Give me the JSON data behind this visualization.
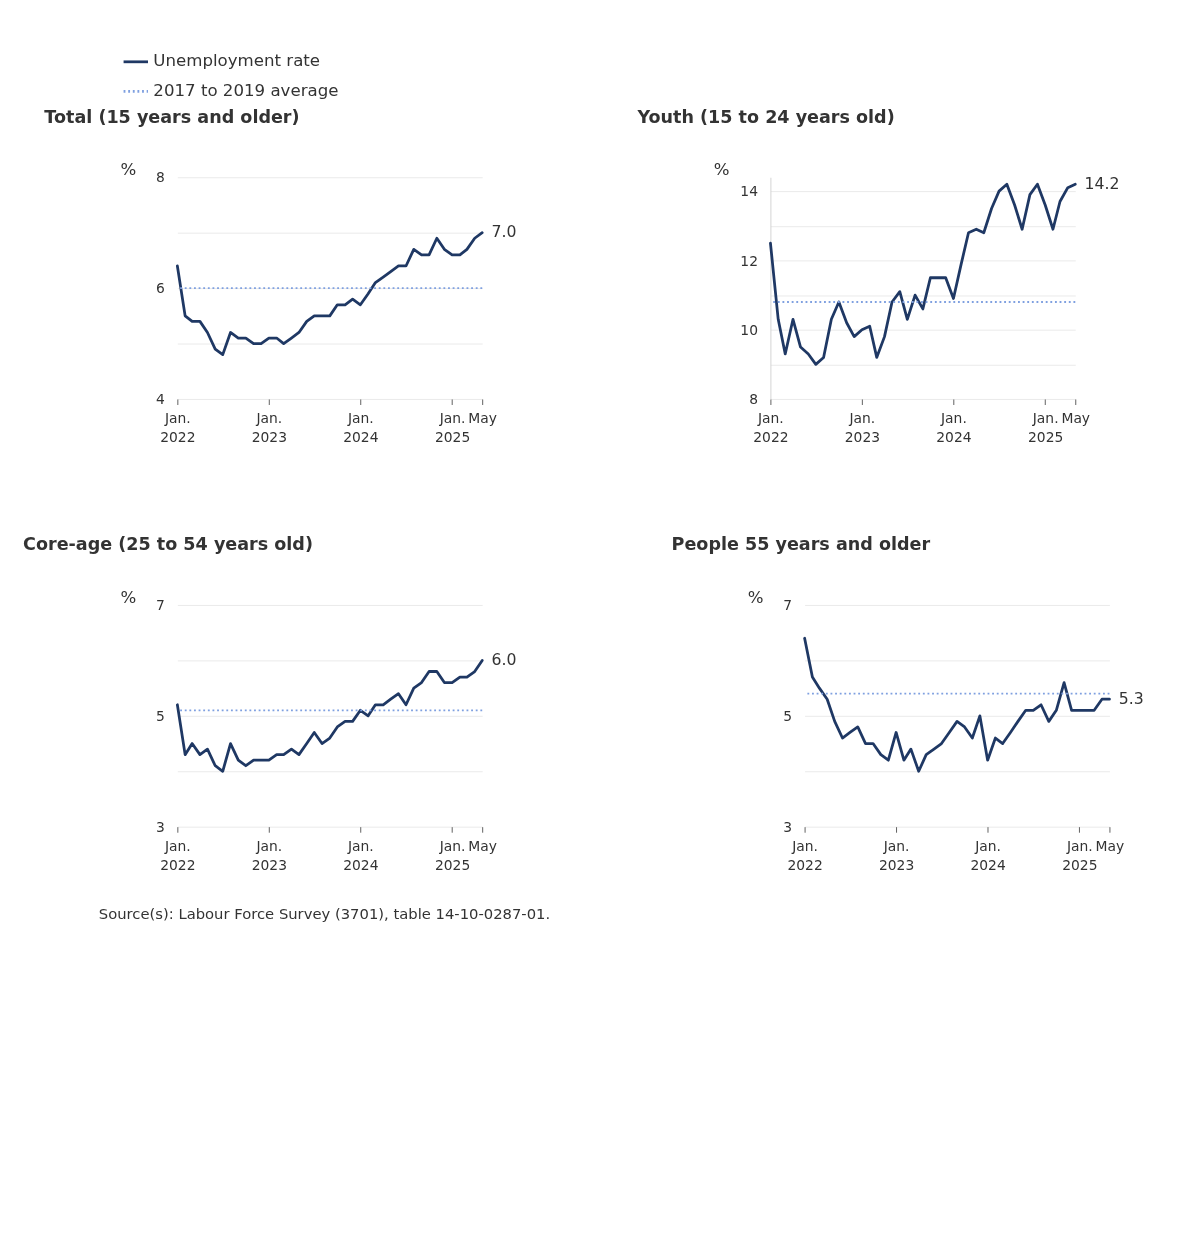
{
  "chart_data": [
    {
      "type": "line",
      "title": "Total (15 years and older)",
      "ylabel": "%",
      "legend": "top",
      "grid": "y",
      "x": [
        "2022-01",
        "2022-02",
        "2022-03",
        "2022-04",
        "2022-05",
        "2022-06",
        "2022-07",
        "2022-08",
        "2022-09",
        "2022-10",
        "2022-11",
        "2022-12",
        "2023-01",
        "2023-02",
        "2023-03",
        "2023-04",
        "2023-05",
        "2023-06",
        "2023-07",
        "2023-08",
        "2023-09",
        "2023-10",
        "2023-11",
        "2023-12",
        "2024-01",
        "2024-02",
        "2024-03",
        "2024-04",
        "2024-05",
        "2024-06",
        "2024-07",
        "2024-08",
        "2024-09",
        "2024-10",
        "2024-11",
        "2024-12",
        "2025-01",
        "2025-02",
        "2025-03",
        "2025-04",
        "2025-05"
      ],
      "series": [
        {
          "name": "Unemployment rate",
          "color": "#1f3864",
          "values": [
            6.4,
            5.5,
            5.4,
            5.4,
            5.2,
            4.9,
            4.8,
            5.2,
            5.1,
            5.1,
            5.0,
            5.0,
            5.1,
            5.1,
            5.0,
            5.1,
            5.2,
            5.4,
            5.5,
            5.5,
            5.5,
            5.7,
            5.7,
            5.8,
            5.7,
            5.9,
            6.1,
            6.2,
            6.3,
            6.4,
            6.4,
            6.7,
            6.6,
            6.6,
            6.9,
            6.7,
            6.6,
            6.6,
            6.7,
            6.9,
            7.0
          ],
          "value_labels": [
            null,
            null,
            null,
            null,
            null,
            null,
            null,
            null,
            null,
            null,
            null,
            null,
            null,
            null,
            null,
            null,
            null,
            null,
            null,
            null,
            null,
            null,
            null,
            null,
            null,
            null,
            null,
            null,
            null,
            null,
            null,
            null,
            null,
            null,
            null,
            null,
            null,
            null,
            null,
            null,
            "7.0"
          ]
        }
      ],
      "ref_lines": [
        {
          "axis": "y",
          "value": 6.0,
          "label": "2017 to 2019 average",
          "color": "#7fa0e0",
          "line_style": "dotted"
        }
      ],
      "ylim": [
        4,
        8
      ],
      "yticks": [
        4,
        {
          "value": 5,
          "label": null
        },
        6,
        {
          "value": 7,
          "label": null
        },
        8
      ],
      "xlim": [
        "2022-01",
        "2025-05"
      ],
      "xticks": [
        {
          "value": "2022-01",
          "label": "Jan. 2022"
        },
        {
          "value": "2023-01",
          "label": "Jan. 2023"
        },
        {
          "value": "2024-01",
          "label": "Jan. 2024"
        },
        {
          "value": "2025-01",
          "label": "Jan. 2025"
        },
        {
          "value": "2025-05",
          "label": "May"
        }
      ]
    },
    {
      "type": "line",
      "title": "Youth (15 to 24 years old)",
      "ylabel": "%",
      "grid": "y",
      "x": [
        "2022-01",
        "2022-02",
        "2022-03",
        "2022-04",
        "2022-05",
        "2022-06",
        "2022-07",
        "2022-08",
        "2022-09",
        "2022-10",
        "2022-11",
        "2022-12",
        "2023-01",
        "2023-02",
        "2023-03",
        "2023-04",
        "2023-05",
        "2023-06",
        "2023-07",
        "2023-08",
        "2023-09",
        "2023-10",
        "2023-11",
        "2023-12",
        "2024-01",
        "2024-02",
        "2024-03",
        "2024-04",
        "2024-05",
        "2024-06",
        "2024-07",
        "2024-08",
        "2024-09",
        "2024-10",
        "2024-11",
        "2024-12",
        "2025-01",
        "2025-02",
        "2025-03",
        "2025-04",
        "2025-05"
      ],
      "series": [
        {
          "color": "#1f3864",
          "values": [
            12.5,
            10.3,
            9.3,
            10.3,
            9.5,
            9.3,
            9.0,
            9.2,
            10.3,
            10.8,
            10.2,
            9.8,
            10.0,
            10.1,
            9.2,
            9.8,
            10.8,
            11.1,
            10.3,
            11.0,
            10.6,
            11.5,
            11.5,
            11.5,
            10.9,
            11.9,
            12.8,
            12.9,
            12.8,
            13.5,
            14.0,
            14.2,
            13.6,
            12.9,
            13.9,
            14.2,
            13.6,
            12.9,
            13.7,
            14.1,
            14.2
          ],
          "value_labels": [
            null,
            null,
            null,
            null,
            null,
            null,
            null,
            null,
            null,
            null,
            null,
            null,
            null,
            null,
            null,
            null,
            null,
            null,
            null,
            null,
            null,
            null,
            null,
            null,
            null,
            null,
            null,
            null,
            null,
            null,
            null,
            null,
            null,
            null,
            null,
            null,
            null,
            null,
            null,
            null,
            "14.2"
          ]
        }
      ],
      "ref_lines": [
        {
          "axis": "y",
          "value": 10.8,
          "color": "#7fa0e0",
          "line_style": "dotted"
        }
      ],
      "ylim": [
        8,
        14.4
      ],
      "yticks": [
        8,
        {
          "value": 9,
          "label": null
        },
        10,
        {
          "value": 11,
          "label": null
        },
        12,
        {
          "value": 13,
          "label": null
        },
        14
      ],
      "xlim": [
        "2022-01",
        "2025-05"
      ],
      "xticks": [
        {
          "value": "2022-01",
          "label": "Jan. 2022"
        },
        {
          "value": "2023-01",
          "label": "Jan. 2023"
        },
        {
          "value": "2024-01",
          "label": "Jan. 2024"
        },
        {
          "value": "2025-01",
          "label": "Jan. 2025"
        },
        {
          "value": "2025-05",
          "label": "May"
        }
      ]
    },
    {
      "type": "line",
      "title": "Core-age (25 to 54 years old)",
      "ylabel": "%",
      "grid": "y",
      "x": [
        "2022-01",
        "2022-02",
        "2022-03",
        "2022-04",
        "2022-05",
        "2022-06",
        "2022-07",
        "2022-08",
        "2022-09",
        "2022-10",
        "2022-11",
        "2022-12",
        "2023-01",
        "2023-02",
        "2023-03",
        "2023-04",
        "2023-05",
        "2023-06",
        "2023-07",
        "2023-08",
        "2023-09",
        "2023-10",
        "2023-11",
        "2023-12",
        "2024-01",
        "2024-02",
        "2024-03",
        "2024-04",
        "2024-05",
        "2024-06",
        "2024-07",
        "2024-08",
        "2024-09",
        "2024-10",
        "2024-11",
        "2024-12",
        "2025-01",
        "2025-02",
        "2025-03",
        "2025-04",
        "2025-05"
      ],
      "series": [
        {
          "color": "#1f3864",
          "values": [
            5.2,
            4.3,
            4.5,
            4.3,
            4.4,
            4.1,
            4.0,
            4.5,
            4.2,
            4.1,
            4.2,
            4.2,
            4.2,
            4.3,
            4.3,
            4.4,
            4.3,
            4.5,
            4.7,
            4.5,
            4.6,
            4.8,
            4.9,
            4.9,
            5.1,
            5.0,
            5.2,
            5.2,
            5.3,
            5.4,
            5.2,
            5.5,
            5.6,
            5.8,
            5.8,
            5.6,
            5.6,
            5.7,
            5.7,
            5.8,
            6.0
          ],
          "value_labels": [
            null,
            null,
            null,
            null,
            null,
            null,
            null,
            null,
            null,
            null,
            null,
            null,
            null,
            null,
            null,
            null,
            null,
            null,
            null,
            null,
            null,
            null,
            null,
            null,
            null,
            null,
            null,
            null,
            null,
            null,
            null,
            null,
            null,
            null,
            null,
            null,
            null,
            null,
            null,
            null,
            "6.0"
          ]
        }
      ],
      "ref_lines": [
        {
          "axis": "y",
          "value": 5.1,
          "color": "#7fa0e0",
          "line_style": "dotted"
        }
      ],
      "ylim": [
        3,
        7
      ],
      "yticks": [
        3,
        {
          "value": 4,
          "label": null
        },
        5,
        {
          "value": 6,
          "label": null
        },
        7
      ],
      "xlim": [
        "2022-01",
        "2025-05"
      ],
      "xticks": [
        {
          "value": "2022-01",
          "label": "Jan. 2022"
        },
        {
          "value": "2023-01",
          "label": "Jan. 2023"
        },
        {
          "value": "2024-01",
          "label": "Jan. 2024"
        },
        {
          "value": "2025-01",
          "label": "Jan. 2025"
        },
        {
          "value": "2025-05",
          "label": "May"
        }
      ],
      "annotations": [
        "Source(s): Labour Force Survey (3701), table 14-10-0287-01."
      ]
    },
    {
      "type": "line",
      "title": "People 55 years and older",
      "ylabel": "%",
      "grid": "y",
      "x": [
        "2022-01",
        "2022-02",
        "2022-03",
        "2022-04",
        "2022-05",
        "2022-06",
        "2022-07",
        "2022-08",
        "2022-09",
        "2022-10",
        "2022-11",
        "2022-12",
        "2023-01",
        "2023-02",
        "2023-03",
        "2023-04",
        "2023-05",
        "2023-06",
        "2023-07",
        "2023-08",
        "2023-09",
        "2023-10",
        "2023-11",
        "2023-12",
        "2024-01",
        "2024-02",
        "2024-03",
        "2024-04",
        "2024-05",
        "2024-06",
        "2024-07",
        "2024-08",
        "2024-09",
        "2024-10",
        "2024-11",
        "2024-12",
        "2025-01",
        "2025-02",
        "2025-03",
        "2025-04",
        "2025-05"
      ],
      "series": [
        {
          "color": "#1f3864",
          "values": [
            6.4,
            5.7,
            5.5,
            5.3,
            4.9,
            4.6,
            4.7,
            4.8,
            4.5,
            4.5,
            4.3,
            4.2,
            4.7,
            4.2,
            4.4,
            4.0,
            4.3,
            4.4,
            4.5,
            4.7,
            4.9,
            4.8,
            4.6,
            5.0,
            4.2,
            4.6,
            4.5,
            4.7,
            4.9,
            5.1,
            5.1,
            5.2,
            4.9,
            5.1,
            5.6,
            5.1,
            5.1,
            5.1,
            5.1,
            5.3,
            5.3
          ],
          "value_labels": [
            null,
            null,
            null,
            null,
            null,
            null,
            null,
            null,
            null,
            null,
            null,
            null,
            null,
            null,
            null,
            null,
            null,
            null,
            null,
            null,
            null,
            null,
            null,
            null,
            null,
            null,
            null,
            null,
            null,
            null,
            null,
            null,
            null,
            null,
            null,
            null,
            null,
            null,
            null,
            null,
            "5.3"
          ]
        }
      ],
      "ref_lines": [
        {
          "axis": "y",
          "value": 5.4,
          "color": "#7fa0e0",
          "line_style": "dotted"
        }
      ],
      "ylim": [
        3,
        7
      ],
      "yticks": [
        3,
        {
          "value": 4,
          "label": null
        },
        5,
        {
          "value": 6,
          "label": null
        },
        7
      ],
      "xlim": [
        "2022-01",
        "2025-05"
      ],
      "xticks": [
        {
          "value": "2022-01",
          "label": "Jan. 2022"
        },
        {
          "value": "2023-01",
          "label": "Jan. 2023"
        },
        {
          "value": "2024-01",
          "label": "Jan. 2024"
        },
        {
          "value": "2025-01",
          "label": "Jan. 2025"
        },
        {
          "value": "2025-05",
          "label": "May"
        }
      ]
    }
  ]
}
